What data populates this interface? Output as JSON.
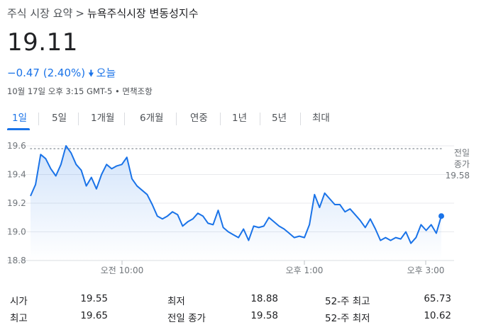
{
  "breadcrumb": {
    "parent": "주식 시장 요약",
    "separator": ">",
    "current": "뉴욕주식시장 변동성지수"
  },
  "quote": {
    "price": "19.11",
    "change": "−0.47 (2.40%)",
    "direction_icon": "arrow-down-icon",
    "period": "오늘",
    "timestamp": "10월 17일 오후 3:15 GMT-5 • 면책조항"
  },
  "tabs": [
    "1일",
    "5일",
    "1개월",
    "6개월",
    "연중",
    "1년",
    "5년",
    "최대"
  ],
  "active_tab": "1일",
  "colors": {
    "accent": "#1a73e8",
    "line": "#1a73e8"
  },
  "chart_data": {
    "type": "area",
    "y_ticks": [
      "19.6",
      "19.4",
      "19.2",
      "19.0",
      "18.8"
    ],
    "x_ticks": [
      "오전 10:00",
      "오후 1:00",
      "오후 3:00"
    ],
    "ylim": [
      18.8,
      19.6
    ],
    "previous_close": {
      "label_line1": "전일",
      "label_line2": "종가",
      "value": "19.58"
    },
    "series_note": "intraday values, approx.",
    "values": [
      19.25,
      19.33,
      19.54,
      19.51,
      19.44,
      19.39,
      19.47,
      19.6,
      19.55,
      19.47,
      19.43,
      19.32,
      19.38,
      19.3,
      19.4,
      19.47,
      19.44,
      19.46,
      19.47,
      19.52,
      19.37,
      19.32,
      19.29,
      19.26,
      19.19,
      19.11,
      19.09,
      19.11,
      19.14,
      19.12,
      19.04,
      19.07,
      19.09,
      19.13,
      19.11,
      19.06,
      19.05,
      19.15,
      19.03,
      19.0,
      18.98,
      18.96,
      19.02,
      18.94,
      19.04,
      19.03,
      19.04,
      19.1,
      19.07,
      19.04,
      19.02,
      18.99,
      18.96,
      18.97,
      18.96,
      19.05,
      19.26,
      19.17,
      19.27,
      19.23,
      19.19,
      19.19,
      19.14,
      19.16,
      19.12,
      19.08,
      19.03,
      19.09,
      19.02,
      18.94,
      18.96,
      18.94,
      18.96,
      18.95,
      19.0,
      18.92,
      18.96,
      19.05,
      19.01,
      19.05,
      18.99,
      19.11
    ]
  },
  "stats": [
    {
      "label": "시가",
      "value": "19.55"
    },
    {
      "label": "최저",
      "value": "18.88"
    },
    {
      "label": "52-주 최고",
      "value": "65.73"
    },
    {
      "label": "최고",
      "value": "19.65"
    },
    {
      "label": "전일 종가",
      "value": "19.58"
    },
    {
      "label": "52-주 최저",
      "value": "10.62"
    }
  ]
}
